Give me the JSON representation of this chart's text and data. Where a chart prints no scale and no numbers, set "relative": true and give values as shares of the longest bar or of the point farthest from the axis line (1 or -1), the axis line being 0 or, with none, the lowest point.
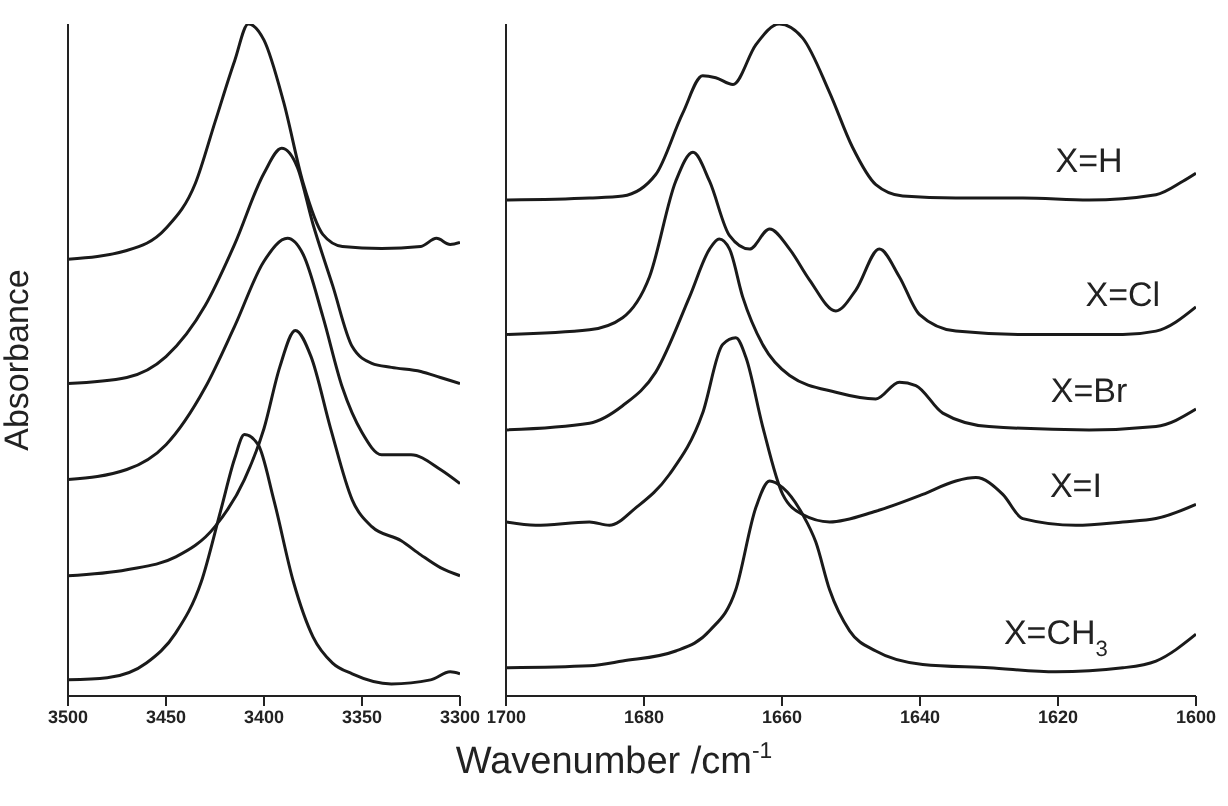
{
  "chart_data": [
    {
      "type": "line",
      "relative": true,
      "ylabel": "Absorbance",
      "xlim": [
        3500,
        3300
      ],
      "xticks": [
        3500,
        3450,
        3400,
        3350,
        3300
      ],
      "marker": "none",
      "line_style": "solid",
      "series": [
        {
          "color": "#1a1a1a",
          "x": [
            3500,
            3470,
            3450,
            3435,
            3425,
            3415,
            3408,
            3400,
            3390,
            3380,
            3370,
            3360,
            3340,
            3320,
            3312,
            3305,
            3300
          ],
          "values": [
            0.65,
            0.663,
            0.696,
            0.763,
            0.854,
            0.945,
            1,
            0.976,
            0.884,
            0.763,
            0.687,
            0.669,
            0.666,
            0.669,
            0.681,
            0.672,
            0.675
          ]
        },
        {
          "color": "#1a1a1a",
          "x": [
            3500,
            3470,
            3450,
            3430,
            3415,
            3400,
            3391,
            3383,
            3375,
            3365,
            3355,
            3345,
            3335,
            3320,
            3310,
            3300
          ],
          "values": [
            0.465,
            0.474,
            0.505,
            0.581,
            0.672,
            0.778,
            0.815,
            0.787,
            0.702,
            0.611,
            0.52,
            0.495,
            0.489,
            0.483,
            0.474,
            0.465
          ]
        },
        {
          "color": "#1a1a1a",
          "x": [
            3500,
            3470,
            3450,
            3430,
            3415,
            3400,
            3388,
            3380,
            3370,
            3360,
            3350,
            3340,
            3325,
            3310,
            3300
          ],
          "values": [
            0.322,
            0.337,
            0.374,
            0.459,
            0.55,
            0.647,
            0.681,
            0.657,
            0.565,
            0.459,
            0.392,
            0.359,
            0.359,
            0.337,
            0.316
          ]
        },
        {
          "color": "#1a1a1a",
          "x": [
            3500,
            3470,
            3445,
            3425,
            3410,
            3400,
            3392,
            3384,
            3376,
            3366,
            3355,
            3345,
            3330,
            3320,
            3310,
            3300
          ],
          "values": [
            0.179,
            0.188,
            0.207,
            0.252,
            0.322,
            0.398,
            0.489,
            0.544,
            0.505,
            0.398,
            0.292,
            0.252,
            0.231,
            0.21,
            0.191,
            0.179
          ]
        },
        {
          "color": "#1a1a1a",
          "x": [
            3500,
            3480,
            3460,
            3445,
            3432,
            3422,
            3415,
            3410,
            3403,
            3395,
            3385,
            3375,
            3365,
            3355,
            3335,
            3315,
            3305,
            3300
          ],
          "values": [
            0.024,
            0.027,
            0.049,
            0.094,
            0.17,
            0.277,
            0.353,
            0.389,
            0.374,
            0.292,
            0.17,
            0.088,
            0.049,
            0.033,
            0.018,
            0.024,
            0.036,
            0.033
          ]
        }
      ]
    },
    {
      "type": "line",
      "relative": true,
      "xlabel": "Wavenumber /cm$^{-1}$",
      "xlim": [
        1700,
        1600
      ],
      "xticks": [
        1700,
        1680,
        1660,
        1640,
        1620,
        1600
      ],
      "marker": "none",
      "line_style": "solid",
      "series": [
        {
          "name": "X=H",
          "color": "#1a1a1a",
          "x": [
            1700,
            1687.9,
            1683.1,
            1678.3,
            1674.4,
            1671.5,
            1669.6,
            1667.1,
            1663.8,
            1660.4,
            1657,
            1653.1,
            1649.8,
            1646.4,
            1642.5,
            1634.8,
            1625.1,
            1615.5,
            1605.8,
            1601.9,
            1600
          ],
          "values": [
            0.738,
            0.741,
            0.744,
            0.776,
            0.867,
            0.923,
            0.92,
            0.91,
            0.969,
            1,
            0.979,
            0.898,
            0.817,
            0.761,
            0.744,
            0.741,
            0.741,
            0.738,
            0.746,
            0.766,
            0.778
          ]
        },
        {
          "name": "X=Cl",
          "color": "#1a1a1a",
          "x": [
            1700,
            1687.9,
            1683.1,
            1679.2,
            1675.4,
            1672.9,
            1670.5,
            1667.6,
            1664.7,
            1661.8,
            1658.9,
            1656,
            1652.2,
            1649.3,
            1645.9,
            1643,
            1640.1,
            1634.8,
            1625.1,
            1610.6,
            1605.8,
            1600
          ],
          "values": [
            0.538,
            0.545,
            0.563,
            0.624,
            0.766,
            0.809,
            0.766,
            0.685,
            0.665,
            0.695,
            0.665,
            0.619,
            0.573,
            0.604,
            0.665,
            0.624,
            0.568,
            0.543,
            0.538,
            0.538,
            0.543,
            0.579
          ]
        },
        {
          "name": "X=Br",
          "color": "#1a1a1a",
          "x": [
            1700,
            1687.9,
            1683.1,
            1678.3,
            1673.4,
            1670.5,
            1669.1,
            1667.6,
            1665.7,
            1662.8,
            1658.9,
            1652.2,
            1646.4,
            1643,
            1640.6,
            1636.7,
            1630,
            1615.5,
            1605.8,
            1600
          ],
          "values": [
            0.396,
            0.406,
            0.432,
            0.482,
            0.594,
            0.665,
            0.68,
            0.665,
            0.594,
            0.523,
            0.477,
            0.452,
            0.442,
            0.467,
            0.462,
            0.421,
            0.401,
            0.396,
            0.401,
            0.427
          ]
        },
        {
          "name": "X=I",
          "color": "#1a1a1a",
          "x": [
            1700,
            1695.7,
            1687.9,
            1685,
            1681.2,
            1676.3,
            1671.5,
            1668.6,
            1666.7,
            1665.2,
            1662.8,
            1659.9,
            1657,
            1653.1,
            1646.4,
            1639.6,
            1634.8,
            1631.9,
            1628,
            1625.1,
            1617.4,
            1610.6,
            1605.8,
            1600
          ],
          "values": [
            0.259,
            0.254,
            0.259,
            0.254,
            0.28,
            0.33,
            0.421,
            0.523,
            0.533,
            0.503,
            0.401,
            0.3,
            0.27,
            0.259,
            0.275,
            0.3,
            0.32,
            0.325,
            0.3,
            0.264,
            0.254,
            0.259,
            0.264,
            0.285
          ]
        },
        {
          "name": "X=CH$_{3}$",
          "color": "#1a1a1a",
          "x": [
            1700,
            1687.9,
            1683.1,
            1675.4,
            1670.5,
            1666.7,
            1663.8,
            1661.8,
            1659.9,
            1657,
            1655.1,
            1653.1,
            1650.2,
            1646.4,
            1639.6,
            1630,
            1620.3,
            1610.6,
            1605.8,
            1600
          ],
          "values": [
            0.042,
            0.045,
            0.052,
            0.067,
            0.097,
            0.158,
            0.28,
            0.32,
            0.31,
            0.27,
            0.229,
            0.158,
            0.097,
            0.067,
            0.047,
            0.042,
            0.036,
            0.042,
            0.052,
            0.092
          ]
        }
      ]
    }
  ]
}
